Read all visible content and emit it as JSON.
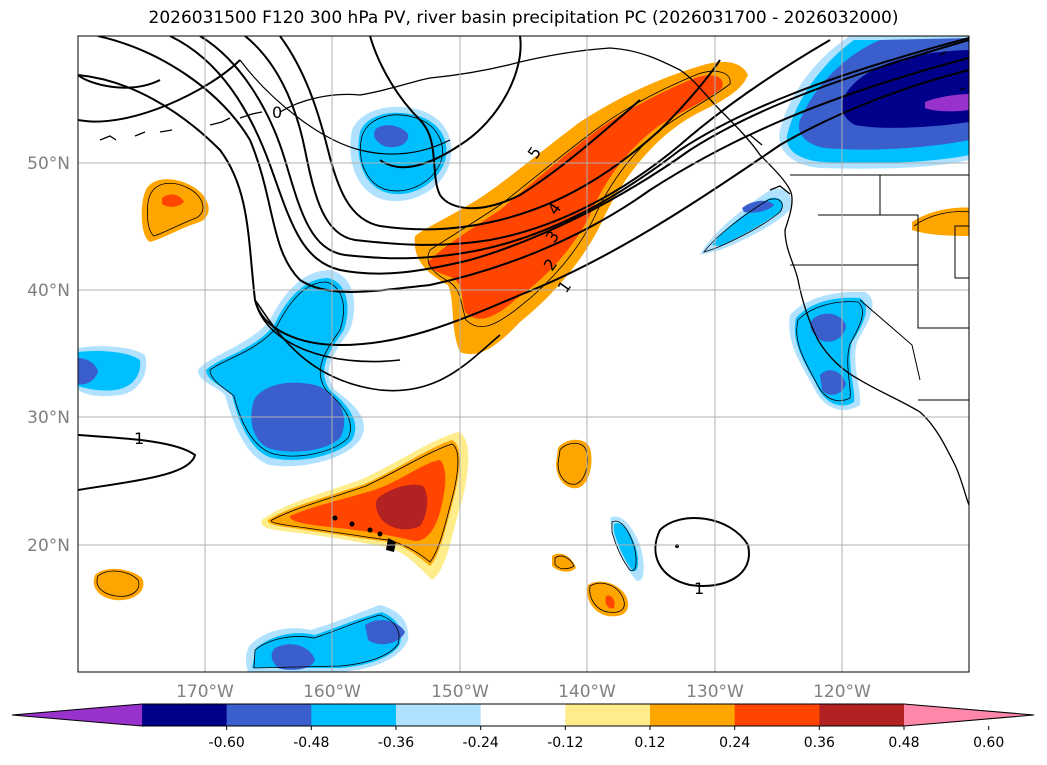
{
  "title": "2026031500 F120 300 hPa PV, river basin precipitation PC (2026031700 - 2026032000)",
  "map": {
    "lon_labels": [
      "170°W",
      "160°W",
      "150°W",
      "140°W",
      "130°W",
      "120°W"
    ],
    "lat_labels": [
      "50°N",
      "40°N",
      "30°N",
      "20°N"
    ],
    "pv_contour_labels": [
      "5",
      "4",
      "3",
      "2",
      "1",
      "1",
      "1",
      "0"
    ]
  },
  "colorbar": {
    "ticks": [
      "-0.60",
      "-0.48",
      "-0.36",
      "-0.24",
      "-0.12",
      "0.12",
      "0.24",
      "0.36",
      "0.48",
      "0.60"
    ],
    "colors": [
      "#9932cc",
      "#00008b",
      "#3a5fcd",
      "#00bfff",
      "#b0e2ff",
      "#ffffff",
      "#ffec8b",
      "#ffa500",
      "#ff4500",
      "#b22222",
      "#ff88aa"
    ]
  },
  "colors": {
    "neg_strong": "#00008b",
    "neg_mid": "#3a5fcd",
    "neg_light": "#00bfff",
    "neg_faint": "#b0e2ff",
    "pos_faint": "#ffec8b",
    "pos_light": "#ffa500",
    "pos_mid": "#ff4500",
    "pos_strong": "#b22222",
    "neg_extreme": "#9932cc"
  }
}
